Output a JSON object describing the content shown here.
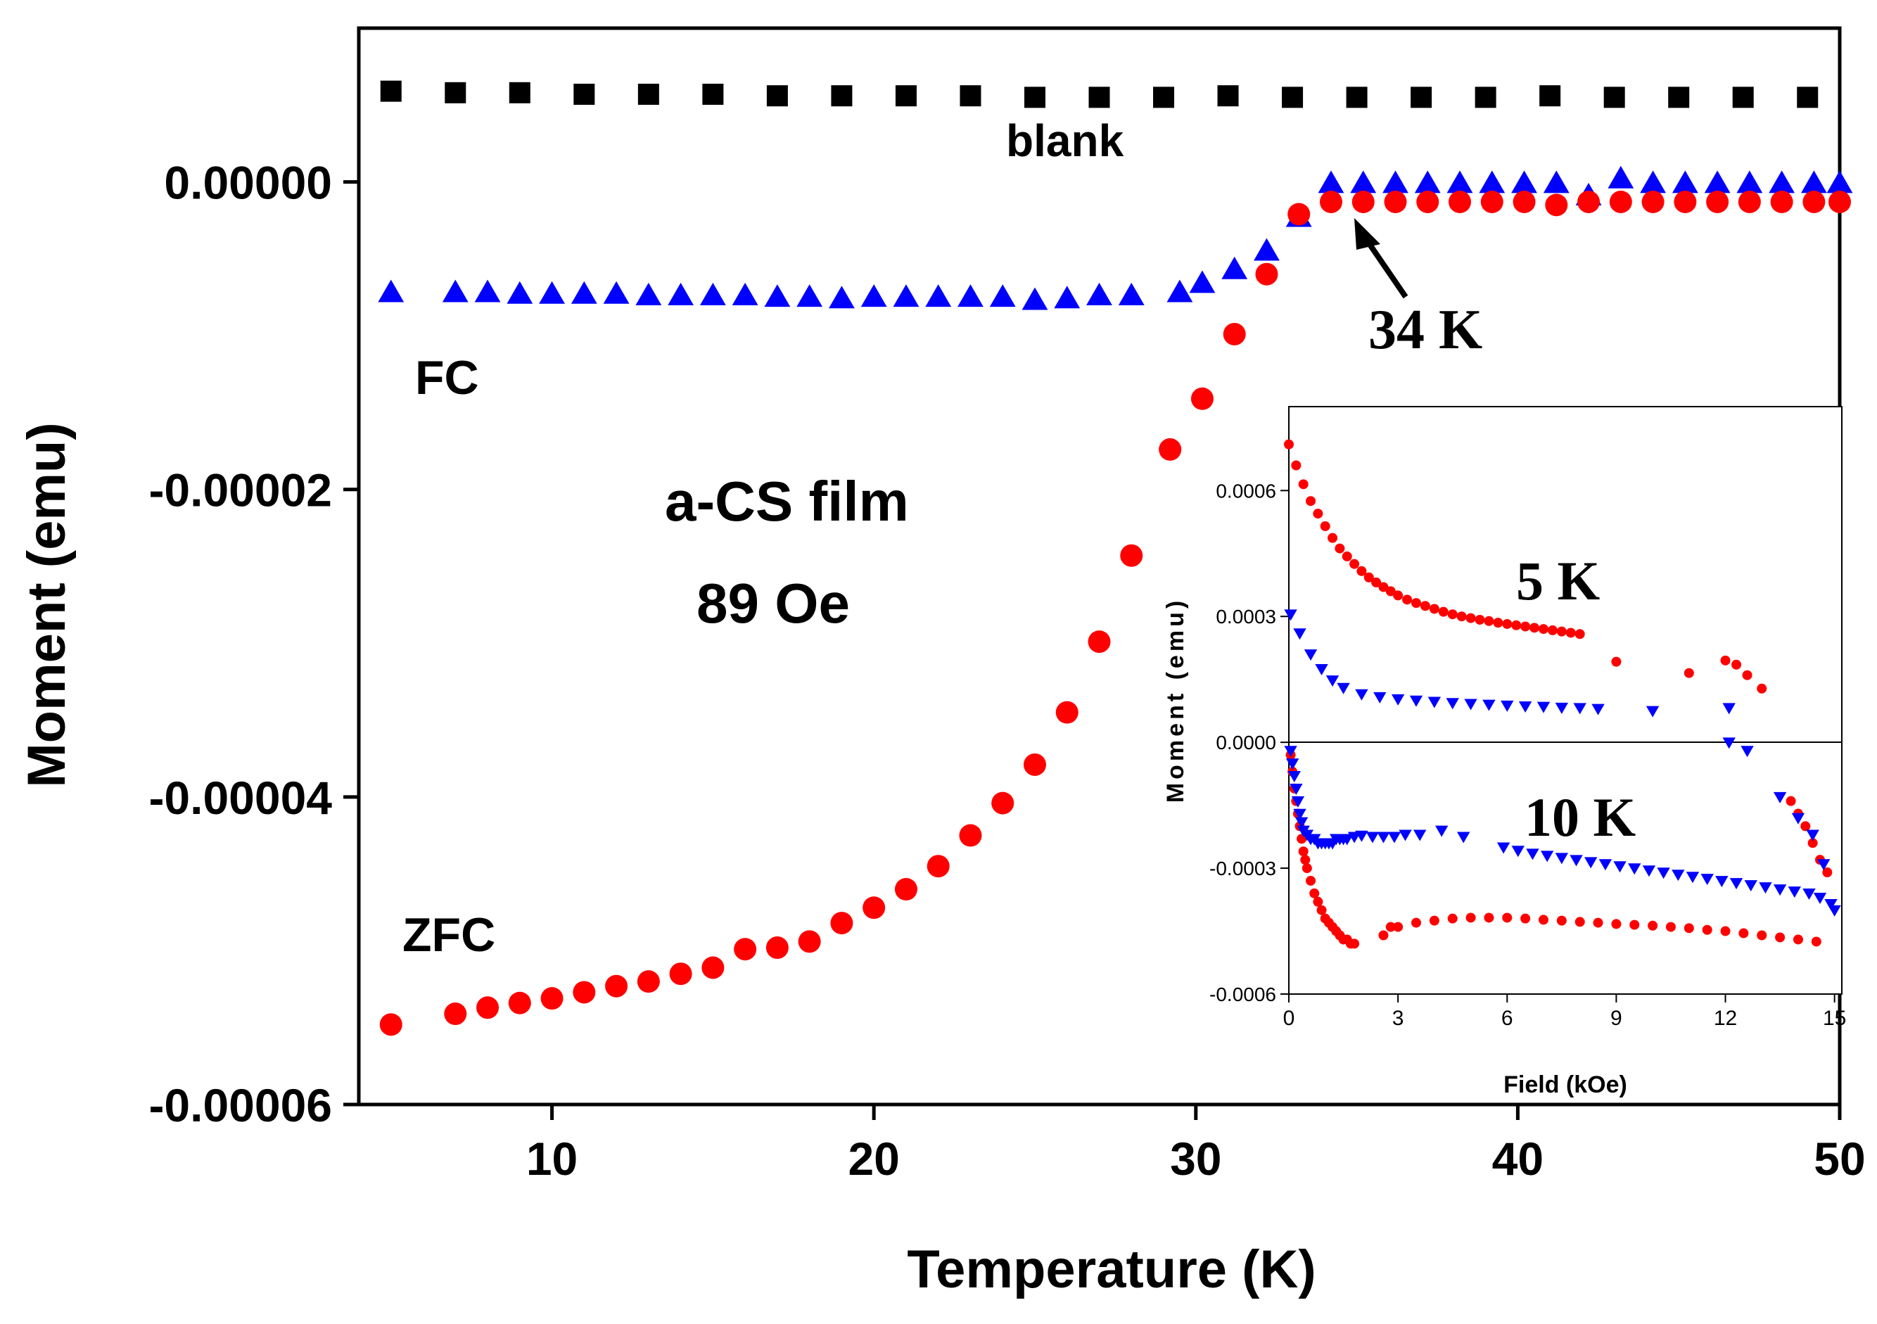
{
  "chart_data": [
    {
      "type": "scatter",
      "title": "",
      "xlabel": "Temperature (K)",
      "ylabel": "Moment (emu)",
      "xlim": [
        4,
        50
      ],
      "ylim": [
        -6e-05,
        1e-05
      ],
      "xticks": [
        10,
        20,
        30,
        40,
        50
      ],
      "xtick_labels": [
        "10",
        "20",
        "30",
        "40",
        "50"
      ],
      "yticks": [
        0,
        -2e-05,
        -4e-05,
        -6e-05
      ],
      "ytick_labels": [
        "0.00000",
        "-0.00002",
        "-0.00004",
        "-0.00006"
      ],
      "annotations": {
        "blank": "blank",
        "fc": "FC",
        "zfc": "ZFC",
        "sample": "a-CS film",
        "field": "89 Oe",
        "transition": "34 K"
      },
      "series": [
        {
          "name": "blank",
          "marker": "square",
          "color": "#000000",
          "x": [
            5,
            7,
            9,
            11,
            13,
            15,
            17,
            19,
            21,
            23,
            25,
            27,
            29,
            31,
            33,
            35,
            37,
            39,
            41,
            43,
            45,
            47,
            49
          ],
          "y": [
            5.9e-06,
            5.8e-06,
            5.8e-06,
            5.7e-06,
            5.7e-06,
            5.7e-06,
            5.6e-06,
            5.6e-06,
            5.6e-06,
            5.6e-06,
            5.5e-06,
            5.5e-06,
            5.5e-06,
            5.6e-06,
            5.5e-06,
            5.5e-06,
            5.5e-06,
            5.5e-06,
            5.6e-06,
            5.5e-06,
            5.5e-06,
            5.5e-06,
            5.5e-06
          ]
        },
        {
          "name": "FC",
          "marker": "triangle-up",
          "color": "#0000ff",
          "x": [
            5,
            7,
            8,
            9,
            10,
            11,
            12,
            13,
            14,
            15,
            16,
            17,
            18,
            19,
            20,
            21,
            22,
            23,
            24,
            25,
            26,
            27,
            28,
            29.5,
            30.2,
            31.2,
            32.2,
            33.2,
            34.2,
            35.2,
            36.2,
            37.2,
            38.2,
            39.2,
            40.2,
            41.2,
            42.2,
            43.2,
            44.2,
            45.2,
            46.2,
            47.2,
            48.2,
            49.2,
            50
          ],
          "y": [
            -7.2e-06,
            -7.2e-06,
            -7.2e-06,
            -7.3e-06,
            -7.3e-06,
            -7.3e-06,
            -7.3e-06,
            -7.4e-06,
            -7.4e-06,
            -7.4e-06,
            -7.4e-06,
            -7.5e-06,
            -7.5e-06,
            -7.6e-06,
            -7.5e-06,
            -7.5e-06,
            -7.5e-06,
            -7.5e-06,
            -7.5e-06,
            -7.7e-06,
            -7.6e-06,
            -7.4e-06,
            -7.4e-06,
            -7.2e-06,
            -6.6e-06,
            -5.7e-06,
            -4.5e-06,
            -2.3e-06,
            -1e-07,
            -1e-07,
            -1e-07,
            -1e-07,
            -1e-07,
            -1e-07,
            -1e-07,
            -1e-07,
            -9e-07,
            2e-07,
            -1e-07,
            -1e-07,
            -1e-07,
            -1e-07,
            -1e-07,
            -1e-07,
            -1e-07
          ]
        },
        {
          "name": "ZFC",
          "marker": "circle",
          "color": "#ff0000",
          "x": [
            5,
            7,
            8,
            9,
            10,
            11,
            12,
            13,
            14,
            15,
            16,
            17,
            18,
            19,
            20,
            21,
            22,
            23,
            24,
            25,
            26,
            27,
            28,
            29.2,
            30.2,
            31.2,
            32.2,
            33.2,
            34.2,
            35.2,
            36.2,
            37.2,
            38.2,
            39.2,
            40.2,
            41.2,
            42.2,
            43.2,
            44.2,
            45.2,
            46.2,
            47.2,
            48.2,
            49.2,
            50
          ],
          "y": [
            -5.48e-05,
            -5.41e-05,
            -5.37e-05,
            -5.34e-05,
            -5.31e-05,
            -5.27e-05,
            -5.23e-05,
            -5.2e-05,
            -5.15e-05,
            -5.11e-05,
            -4.99e-05,
            -4.98e-05,
            -4.94e-05,
            -4.82e-05,
            -4.72e-05,
            -4.6e-05,
            -4.45e-05,
            -4.25e-05,
            -4.04e-05,
            -3.79e-05,
            -3.45e-05,
            -2.99e-05,
            -2.43e-05,
            -1.74e-05,
            -1.41e-05,
            -9.9e-06,
            -6e-06,
            -2.1e-06,
            -1.3e-06,
            -1.3e-06,
            -1.3e-06,
            -1.3e-06,
            -1.3e-06,
            -1.3e-06,
            -1.3e-06,
            -1.5e-06,
            -1.3e-06,
            -1.3e-06,
            -1.3e-06,
            -1.3e-06,
            -1.3e-06,
            -1.3e-06,
            -1.3e-06,
            -1.3e-06,
            -1.3e-06
          ]
        }
      ]
    },
    {
      "type": "scatter",
      "title": "",
      "xlabel": "Field (kOe)",
      "ylabel": "Moment (emu)",
      "xlim": [
        0,
        15.2
      ],
      "ylim": [
        -0.0006,
        0.0008
      ],
      "xticks": [
        0,
        3,
        6,
        9,
        12,
        15
      ],
      "xtick_labels": [
        "0",
        "3",
        "6",
        "9",
        "12",
        "15"
      ],
      "yticks": [
        0.0006,
        0.0003,
        0,
        -0.0003,
        -0.0006
      ],
      "ytick_labels": [
        "0.0006",
        "0.0003",
        "0.0000",
        "-0.0003",
        "-0.0006"
      ],
      "annotations": {
        "t5": "5 K",
        "t10": "10 K"
      },
      "series": [
        {
          "name": "5 K (red)",
          "marker": "circle",
          "color": "#ff0000",
          "x": [
            0,
            0.2,
            0.4,
            0.6,
            0.8,
            1.0,
            1.2,
            1.4,
            1.6,
            1.8,
            2.0,
            2.2,
            2.4,
            2.6,
            2.8,
            3.0,
            3.25,
            3.5,
            3.75,
            4.0,
            4.25,
            4.5,
            4.75,
            5.0,
            5.25,
            5.5,
            5.75,
            6.0,
            6.25,
            6.5,
            6.75,
            7.0,
            7.25,
            7.5,
            7.75,
            8.0,
            9.0,
            11.0,
            12.0,
            12.3,
            12.6,
            13.0
          ],
          "y": [
            0.00071,
            0.00066,
            0.000615,
            0.000575,
            0.000545,
            0.000515,
            0.000487,
            0.000462,
            0.000443,
            0.000425,
            0.000408,
            0.000393,
            0.000381,
            0.00037,
            0.00036,
            0.00035,
            0.00034,
            0.000332,
            0.000325,
            0.000318,
            0.000311,
            0.000305,
            0.0003,
            0.000296,
            0.000292,
            0.000289,
            0.000285,
            0.000282,
            0.000279,
            0.000276,
            0.000273,
            0.00027,
            0.000267,
            0.000264,
            0.000261,
            0.000258,
            0.000192,
            0.000165,
            0.000195,
            0.000185,
            0.00016,
            0.000128
          ]
        },
        {
          "name": "5 K (blue)",
          "marker": "triangle-down",
          "color": "#0000ff",
          "x": [
            0.05,
            0.3,
            0.6,
            0.9,
            1.2,
            1.5,
            2.0,
            2.5,
            3.0,
            3.5,
            4.0,
            4.5,
            5.0,
            5.5,
            6.0,
            6.5,
            7.0,
            7.5,
            8.0,
            8.5,
            10.0,
            12.1
          ],
          "y": [
            0.000305,
            0.00026,
            0.00021,
            0.000175,
            0.000148,
            0.00013,
            0.000115,
            0.000108,
            0.000103,
            0.0001,
            9.7e-05,
            9.4e-05,
            9.2e-05,
            9e-05,
            8.8e-05,
            8.6e-05,
            8.5e-05,
            8.3e-05,
            8.2e-05,
            8e-05,
            7.5e-05,
            8.2e-05
          ]
        },
        {
          "name": "10 K (red)",
          "marker": "circle",
          "color": "#ff0000",
          "x": [
            0.05,
            0.1,
            0.15,
            0.2,
            0.25,
            0.3,
            0.35,
            0.4,
            0.45,
            0.5,
            0.6,
            0.7,
            0.8,
            0.9,
            1.0,
            1.1,
            1.2,
            1.3,
            1.4,
            1.5,
            1.6,
            1.7,
            1.8,
            2.6,
            2.8,
            3.0,
            3.5,
            4.0,
            4.5,
            5.0,
            5.5,
            6.0,
            6.5,
            7.0,
            7.5,
            8.0,
            8.5,
            9.0,
            9.5,
            10.0,
            10.5,
            11.0,
            11.5,
            12.0,
            12.5,
            13.0,
            13.5,
            14.0,
            14.5,
            13.8,
            14.0,
            14.2,
            14.4,
            14.6,
            14.8
          ],
          "y": [
            -3e-05,
            -7e-05,
            -0.00011,
            -0.00014,
            -0.00017,
            -0.0002,
            -0.00023,
            -0.00026,
            -0.00028,
            -0.0003,
            -0.00033,
            -0.00036,
            -0.00038,
            -0.0004,
            -0.00042,
            -0.00043,
            -0.00044,
            -0.00045,
            -0.00046,
            -0.00047,
            -0.00047,
            -0.00048,
            -0.00048,
            -0.00046,
            -0.00044,
            -0.00044,
            -0.00043,
            -0.000425,
            -0.00042,
            -0.000418,
            -0.000418,
            -0.000418,
            -0.00042,
            -0.000423,
            -0.000425,
            -0.000428,
            -0.00043,
            -0.000433,
            -0.000435,
            -0.000437,
            -0.00044,
            -0.000443,
            -0.000447,
            -0.00045,
            -0.000455,
            -0.00046,
            -0.000465,
            -0.00047,
            -0.000475,
            -0.00014,
            -0.00017,
            -0.0002,
            -0.00024,
            -0.00028,
            -0.00031
          ]
        },
        {
          "name": "10 K (blue)",
          "marker": "triangle-down",
          "color": "#0000ff",
          "x": [
            0.05,
            0.1,
            0.15,
            0.2,
            0.25,
            0.3,
            0.35,
            0.4,
            0.5,
            0.6,
            0.7,
            0.8,
            0.9,
            1.0,
            1.1,
            1.2,
            1.3,
            1.4,
            1.5,
            1.6,
            1.8,
            2.0,
            2.3,
            2.6,
            2.9,
            3.2,
            3.6,
            4.2,
            4.8,
            5.9,
            6.3,
            6.7,
            7.1,
            7.5,
            7.9,
            8.3,
            8.7,
            9.1,
            9.5,
            9.9,
            10.3,
            10.7,
            11.1,
            11.5,
            11.9,
            12.3,
            12.7,
            13.1,
            13.5,
            13.9,
            14.3,
            14.6,
            14.9,
            12.1,
            12.6,
            13.5,
            14.0,
            14.4,
            14.7,
            15.0
          ],
          "y": [
            -2e-05,
            -5e-05,
            -8e-05,
            -0.00011,
            -0.00014,
            -0.00017,
            -0.00019,
            -0.00021,
            -0.00022,
            -0.00023,
            -0.00023,
            -0.00024,
            -0.00024,
            -0.00024,
            -0.00024,
            -0.00024,
            -0.00023,
            -0.00023,
            -0.00023,
            -0.00023,
            -0.000225,
            -0.000222,
            -0.000225,
            -0.000225,
            -0.000225,
            -0.00022,
            -0.00022,
            -0.00021,
            -0.000225,
            -0.00025,
            -0.000258,
            -0.000265,
            -0.00027,
            -0.000275,
            -0.00028,
            -0.000285,
            -0.00029,
            -0.000295,
            -0.0003,
            -0.000305,
            -0.00031,
            -0.000315,
            -0.00032,
            -0.000325,
            -0.00033,
            -0.000335,
            -0.00034,
            -0.000345,
            -0.00035,
            -0.000355,
            -0.00036,
            -0.00037,
            -0.000385,
            0.0,
            -2e-05,
            -0.00013,
            -0.00018,
            -0.00022,
            -0.00029,
            -0.0004
          ]
        }
      ]
    }
  ]
}
